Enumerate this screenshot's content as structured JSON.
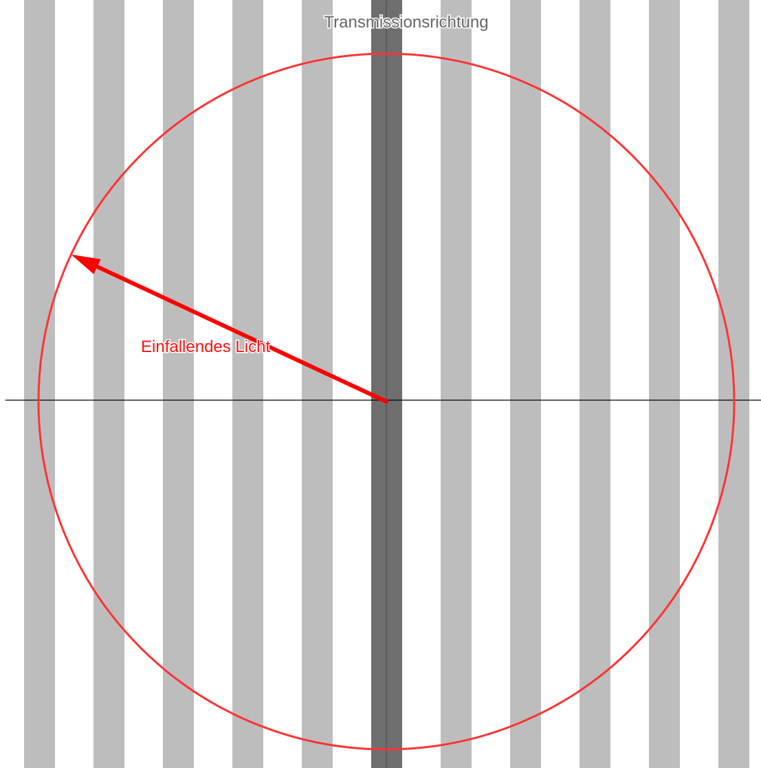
{
  "labels": {
    "transmission_direction": "Transmissionsrichtung",
    "incident_light": "Einfallendes Licht"
  },
  "colors": {
    "background": "#ffffff",
    "stripe": "#bdbdbd",
    "transmission_axis": "#6e6e6e",
    "circle": "#ff3333",
    "arrow": "#ff0000",
    "axis_line": "#000000",
    "transmission_label": "#666666",
    "incident_label": "#ff1010"
  },
  "polarizer": {
    "stripe_count": 11
  },
  "incident_light": {
    "angle_deg": 155
  }
}
